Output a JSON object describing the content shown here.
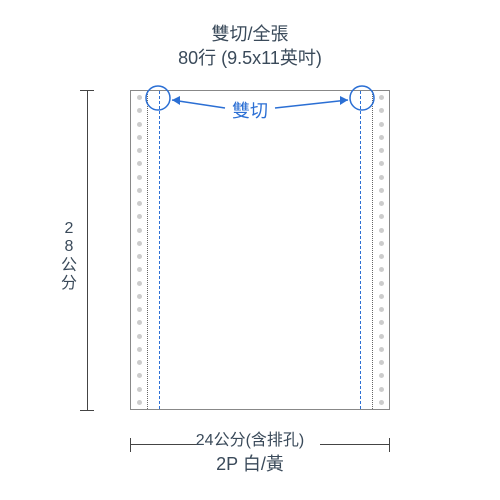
{
  "title": {
    "line1": "雙切/全張",
    "line2": "80行 (9.5x11英吋)"
  },
  "callout": {
    "label": "雙切"
  },
  "dimensions": {
    "height_label": "28公分",
    "width_label": "24公分(含排孔)"
  },
  "bottom_note": "2P  白/黃",
  "paper": {
    "perforation_hole_count": 24,
    "dash_color": "#2b6fd4",
    "hole_color": "#cccccc",
    "border_color": "#888888"
  },
  "text_color": "#3a4a5a",
  "accent_color": "#2b6fd4",
  "background_color": "#ffffff"
}
